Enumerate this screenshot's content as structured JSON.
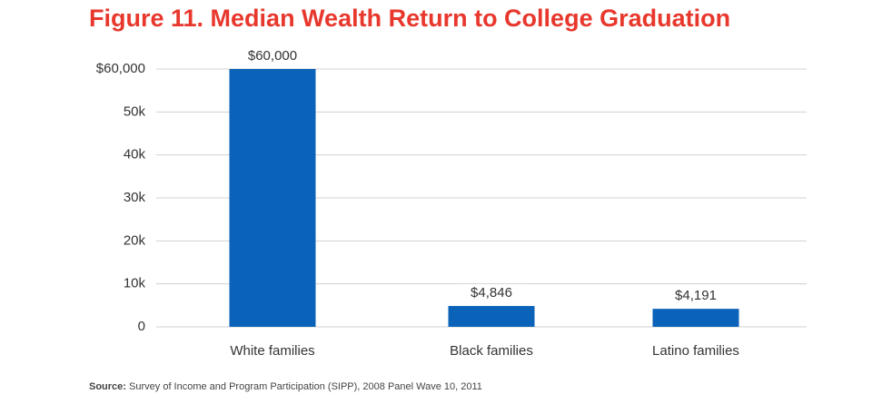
{
  "chart_data": {
    "type": "bar",
    "title": "Figure 11. Median Wealth Return to College Graduation",
    "categories": [
      "White families",
      "Black families",
      "Latino families"
    ],
    "values": [
      60000,
      4846,
      4191
    ],
    "value_labels": [
      "$60,000",
      "$4,846",
      "$4,191"
    ],
    "color": "#0a63b8",
    "ylim": [
      0,
      60000
    ],
    "yticks": [
      0,
      {
        "value": 10000,
        "label": "10k"
      },
      {
        "value": 20000,
        "label": "20k"
      },
      {
        "value": 30000,
        "label": "30k"
      },
      {
        "value": 40000,
        "label": "40k"
      },
      {
        "value": 50000,
        "label": "50k"
      },
      {
        "value": 60000,
        "label": "$60,000"
      }
    ],
    "grid": true,
    "source_label": "Source:",
    "source": "Survey of Income and Program Participation (SIPP), 2008 Panel Wave 10, 2011"
  }
}
